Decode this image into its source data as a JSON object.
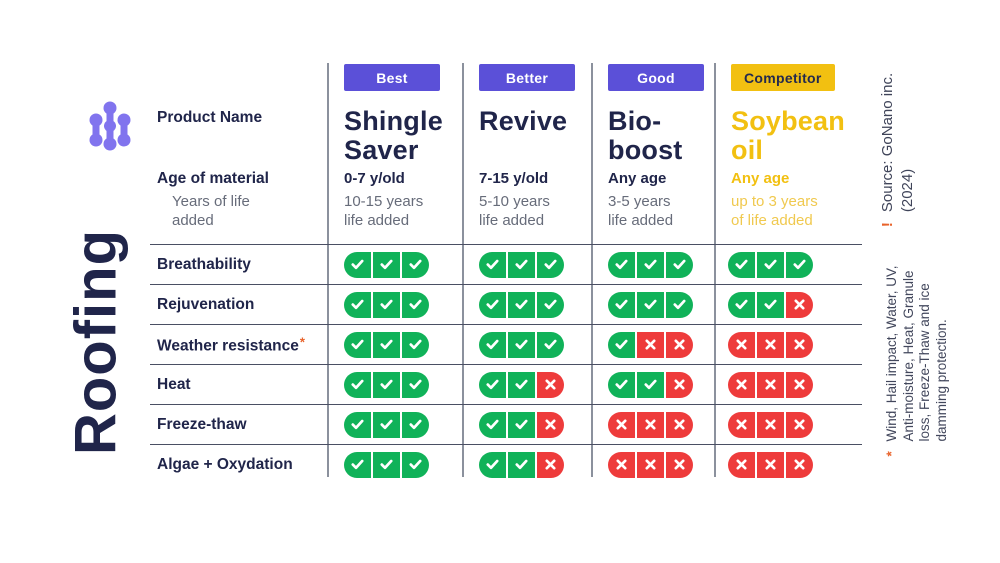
{
  "page": {
    "vertical_title": "Roofing"
  },
  "icons": {
    "logo": "molecule-icon",
    "positive": "check-icon",
    "negative": "cross-icon"
  },
  "colors": {
    "navy": "#20254a",
    "badge_purple": "#5b50d8",
    "competitor_yellow": "#f2c011",
    "positive_green": "#10b259",
    "negative_red": "#ee3b3b",
    "accent_orange": "#e8632b",
    "logo_purple": "#8174ee"
  },
  "header_labels": {
    "product_name": "Product Name",
    "age_of_material": "Age of material",
    "years_of_life_lines": [
      "Years of life",
      "added"
    ]
  },
  "columns": [
    {
      "id": "shingle-saver",
      "badge": "Best",
      "badge_bg": "#5b50d8",
      "badge_fg": "#ffffff",
      "name": "Shingle Saver",
      "name_lines": [
        "Shingle",
        "Saver"
      ],
      "age": "0-7 y/old",
      "life_lines": [
        "10-15 years",
        "life added"
      ],
      "highlight": false
    },
    {
      "id": "revive",
      "badge": "Better",
      "badge_bg": "#5b50d8",
      "badge_fg": "#ffffff",
      "name": "Revive",
      "name_lines": [
        "Revive"
      ],
      "age": "7-15 y/old",
      "life_lines": [
        "5-10 years",
        "life added"
      ],
      "highlight": false
    },
    {
      "id": "bio-boost",
      "badge": "Good",
      "badge_bg": "#5b50d8",
      "badge_fg": "#ffffff",
      "name": "Bio-boost",
      "name_lines": [
        "Bio-",
        "boost"
      ],
      "age": "Any age",
      "life_lines": [
        "3-5 years",
        "life added"
      ],
      "highlight": false
    },
    {
      "id": "soybean-oil",
      "badge": "Competitor",
      "badge_bg": "#f2c011",
      "badge_fg": "#252a4e",
      "name": "Soybean oil",
      "name_lines": [
        "Soybean",
        "oil"
      ],
      "age": "Any age",
      "life_lines": [
        "up to 3 years",
        "of life added"
      ],
      "highlight": true
    }
  ],
  "rows": [
    {
      "label": "Breathability",
      "footnote_mark": false,
      "cells": [
        [
          "check",
          "check",
          "check"
        ],
        [
          "check",
          "check",
          "check"
        ],
        [
          "check",
          "check",
          "check"
        ],
        [
          "check",
          "check",
          "check"
        ]
      ]
    },
    {
      "label": "Rejuvenation",
      "footnote_mark": false,
      "cells": [
        [
          "check",
          "check",
          "check"
        ],
        [
          "check",
          "check",
          "check"
        ],
        [
          "check",
          "check",
          "check"
        ],
        [
          "check",
          "check",
          "cross"
        ]
      ]
    },
    {
      "label": "Weather resistance",
      "footnote_mark": true,
      "cells": [
        [
          "check",
          "check",
          "check"
        ],
        [
          "check",
          "check",
          "check"
        ],
        [
          "check",
          "cross",
          "cross"
        ],
        [
          "cross",
          "cross",
          "cross"
        ]
      ]
    },
    {
      "label": "Heat",
      "footnote_mark": false,
      "cells": [
        [
          "check",
          "check",
          "check"
        ],
        [
          "check",
          "check",
          "cross"
        ],
        [
          "check",
          "check",
          "cross"
        ],
        [
          "cross",
          "cross",
          "cross"
        ]
      ]
    },
    {
      "label": "Freeze-thaw",
      "footnote_mark": false,
      "cells": [
        [
          "check",
          "check",
          "check"
        ],
        [
          "check",
          "check",
          "cross"
        ],
        [
          "cross",
          "cross",
          "cross"
        ],
        [
          "cross",
          "cross",
          "cross"
        ]
      ]
    },
    {
      "label": "Algae + Oxydation",
      "footnote_mark": false,
      "cells": [
        [
          "check",
          "check",
          "check"
        ],
        [
          "check",
          "check",
          "cross"
        ],
        [
          "cross",
          "cross",
          "cross"
        ],
        [
          "cross",
          "cross",
          "cross"
        ]
      ]
    }
  ],
  "side_notes": {
    "source_mark": "!",
    "source_lines": [
      "Source: GoNano inc.",
      "(2024)"
    ],
    "footnote_mark": "*",
    "footnote_lines": [
      "Wind, Hail impact, Water, UV,",
      "Anti-moisture, Heat, Granule",
      "loss, Freeze-Thaw and ice",
      "damming protection."
    ]
  }
}
